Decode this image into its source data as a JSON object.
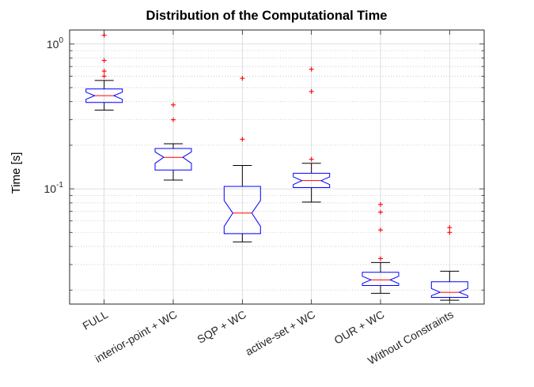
{
  "chart_data": {
    "type": "box",
    "title": "Distribution of the Computational Time",
    "xlabel": "",
    "ylabel": "Time [s]",
    "yscale": "log",
    "ylim": [
      0.016,
      1.25
    ],
    "y_tick_labels": [
      {
        "value": 1,
        "base": "10",
        "exp": "0"
      },
      {
        "value": 0.1,
        "base": "10",
        "exp": "-1"
      }
    ],
    "grid": true,
    "categories": [
      "FULL",
      "interior-point + WC",
      "SQP + WC",
      "active-set + WC",
      "OUR + WC",
      "Without Constraints"
    ],
    "boxes": [
      {
        "category": "FULL",
        "whisker_low": 0.35,
        "q1": 0.395,
        "median": 0.44,
        "q3": 0.49,
        "whisker_high": 0.56,
        "notch": [
          0.415,
          0.465
        ],
        "outliers": [
          1.15,
          0.77,
          0.65,
          0.6
        ]
      },
      {
        "category": "interior-point + WC",
        "whisker_low": 0.115,
        "q1": 0.135,
        "median": 0.165,
        "q3": 0.19,
        "whisker_high": 0.205,
        "notch": [
          0.15,
          0.18
        ],
        "outliers": [
          0.38,
          0.3
        ]
      },
      {
        "category": "SQP + WC",
        "whisker_low": 0.043,
        "q1": 0.049,
        "median": 0.068,
        "q3": 0.104,
        "whisker_high": 0.145,
        "notch": [
          0.055,
          0.083
        ],
        "outliers": [
          0.58,
          0.22
        ]
      },
      {
        "category": "active-set + WC",
        "whisker_low": 0.081,
        "q1": 0.102,
        "median": 0.114,
        "q3": 0.128,
        "whisker_high": 0.15,
        "notch": [
          0.107,
          0.121
        ],
        "outliers": [
          0.67,
          0.47,
          0.16
        ]
      },
      {
        "category": "OUR + WC",
        "whisker_low": 0.019,
        "q1": 0.0215,
        "median": 0.0235,
        "q3": 0.0265,
        "whisker_high": 0.031,
        "notch": [
          0.0222,
          0.0249
        ],
        "outliers": [
          0.078,
          0.069,
          0.052,
          0.033
        ]
      },
      {
        "category": "Without Constraints",
        "whisker_low": 0.017,
        "q1": 0.0178,
        "median": 0.0193,
        "q3": 0.0228,
        "whisker_high": 0.027,
        "notch": [
          0.0183,
          0.0205
        ],
        "outliers": [
          0.054,
          0.05
        ]
      }
    ],
    "colors": {
      "box": "#0000ff",
      "median": "#ff0000",
      "whisker": "#000000",
      "outlier": "#ff0000",
      "grid": "#d4d4d4",
      "minor_grid": "#cfcfcf"
    }
  }
}
